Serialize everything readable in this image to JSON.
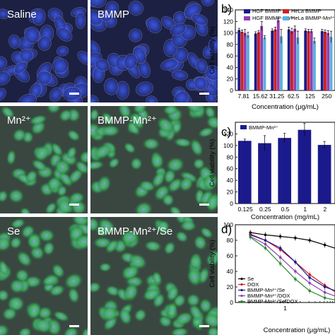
{
  "micrographs": [
    {
      "label": "Saline",
      "stain": "blue"
    },
    {
      "label": "BMMP",
      "stain": "blue"
    },
    {
      "label": "Mn²⁺",
      "stain": "green"
    },
    {
      "label": "BMMP-Mn²⁺",
      "stain": "green"
    },
    {
      "label": "Se",
      "stain": "green"
    },
    {
      "label": "BMMP-Mn²⁺/Se",
      "stain": "green"
    }
  ],
  "colors": {
    "hgf_bmmp": "#1a1a8c",
    "hela_bmmp": "#d02020",
    "hgf_bmmp_mn": "#9040b0",
    "hela_bmmp_mn": "#5ab0e0",
    "bar_c": "#1a1a8c",
    "se": "#000000",
    "dox": "#d02020",
    "bmmp_mn_se": "#1a1a8c",
    "bmmp_mn_dox": "#9040b0",
    "bmmp_mn_se_dox": "#2a8a2a"
  },
  "chart_data": [
    {
      "panel": "b",
      "type": "bar",
      "ylabel": "Cell viability (%)",
      "xlabel": "Concentration (μg/mL)",
      "ylim": [
        0,
        140
      ],
      "yticks": [
        0,
        20,
        40,
        60,
        80,
        100,
        120,
        140
      ],
      "categories": [
        "7.81",
        "15.62",
        "31.25",
        "62.5",
        "125",
        "250"
      ],
      "series": [
        {
          "name": "HGF BMMP",
          "values": [
            105,
            99,
            104,
            106,
            104,
            103
          ],
          "errors": [
            3,
            3,
            3,
            4,
            3,
            3
          ]
        },
        {
          "name": "HeLa BMMP",
          "values": [
            102,
            101,
            106,
            103,
            103,
            102
          ],
          "errors": [
            3,
            3,
            4,
            5,
            3,
            3
          ]
        },
        {
          "name": "HGF BMMP-Mn²⁺",
          "values": [
            100,
            112,
            122,
            107,
            103,
            100
          ],
          "errors": [
            6,
            8,
            4,
            5,
            3,
            4
          ]
        },
        {
          "name": "HeLa BMMP-Mn²⁺",
          "values": [
            96,
            92,
            94,
            92,
            86,
            93
          ],
          "errors": [
            5,
            3,
            12,
            11,
            5,
            10
          ]
        }
      ],
      "legend": "top"
    },
    {
      "panel": "c",
      "type": "bar",
      "ylabel": "Cell viability (%)",
      "xlabel": "Concentration (mg/mL)",
      "ylim": [
        0,
        140
      ],
      "yticks": [
        0,
        20,
        40,
        60,
        80,
        100,
        120
      ],
      "categories": [
        "0.125",
        "0.25",
        "0.5",
        "1",
        "2"
      ],
      "series": [
        {
          "name": "BMMP-Mn²⁺",
          "values": [
            108,
            104,
            113,
            127,
            101
          ],
          "errors": [
            3,
            13,
            8,
            11,
            6
          ]
        }
      ],
      "legend": "top-left"
    },
    {
      "panel": "d",
      "type": "line",
      "ylabel": "Cell viability (%)",
      "xlabel": "Concentration (μg/mL)",
      "xscale": "log",
      "xlim": [
        0.1,
        10
      ],
      "xticks_labeled": [
        "1"
      ],
      "ylim": [
        0,
        100
      ],
      "yticks": [
        0,
        20,
        40,
        60,
        80,
        100
      ],
      "x": [
        0.2,
        0.4,
        0.8,
        1.6,
        3.1,
        6.25,
        12.5
      ],
      "series": [
        {
          "name": "Se",
          "values": [
            90,
            87,
            85,
            83,
            80,
            74,
            68
          ]
        },
        {
          "name": "DOX",
          "values": [
            88,
            80,
            68,
            52,
            36,
            22,
            10
          ]
        },
        {
          "name": "BMMP-Mn²⁺/Se",
          "values": [
            87,
            80,
            70,
            52,
            32,
            20,
            13
          ]
        },
        {
          "name": "BMMP-Mn²⁺/DOX",
          "values": [
            85,
            75,
            58,
            40,
            25,
            13,
            6
          ]
        },
        {
          "name": "BMMP-Mn²⁺/Se/DOX",
          "values": [
            84,
            70,
            50,
            30,
            15,
            6,
            2
          ]
        }
      ],
      "legend": "bottom-left"
    }
  ],
  "panel_letters": [
    "b)",
    "c)",
    "d)"
  ]
}
